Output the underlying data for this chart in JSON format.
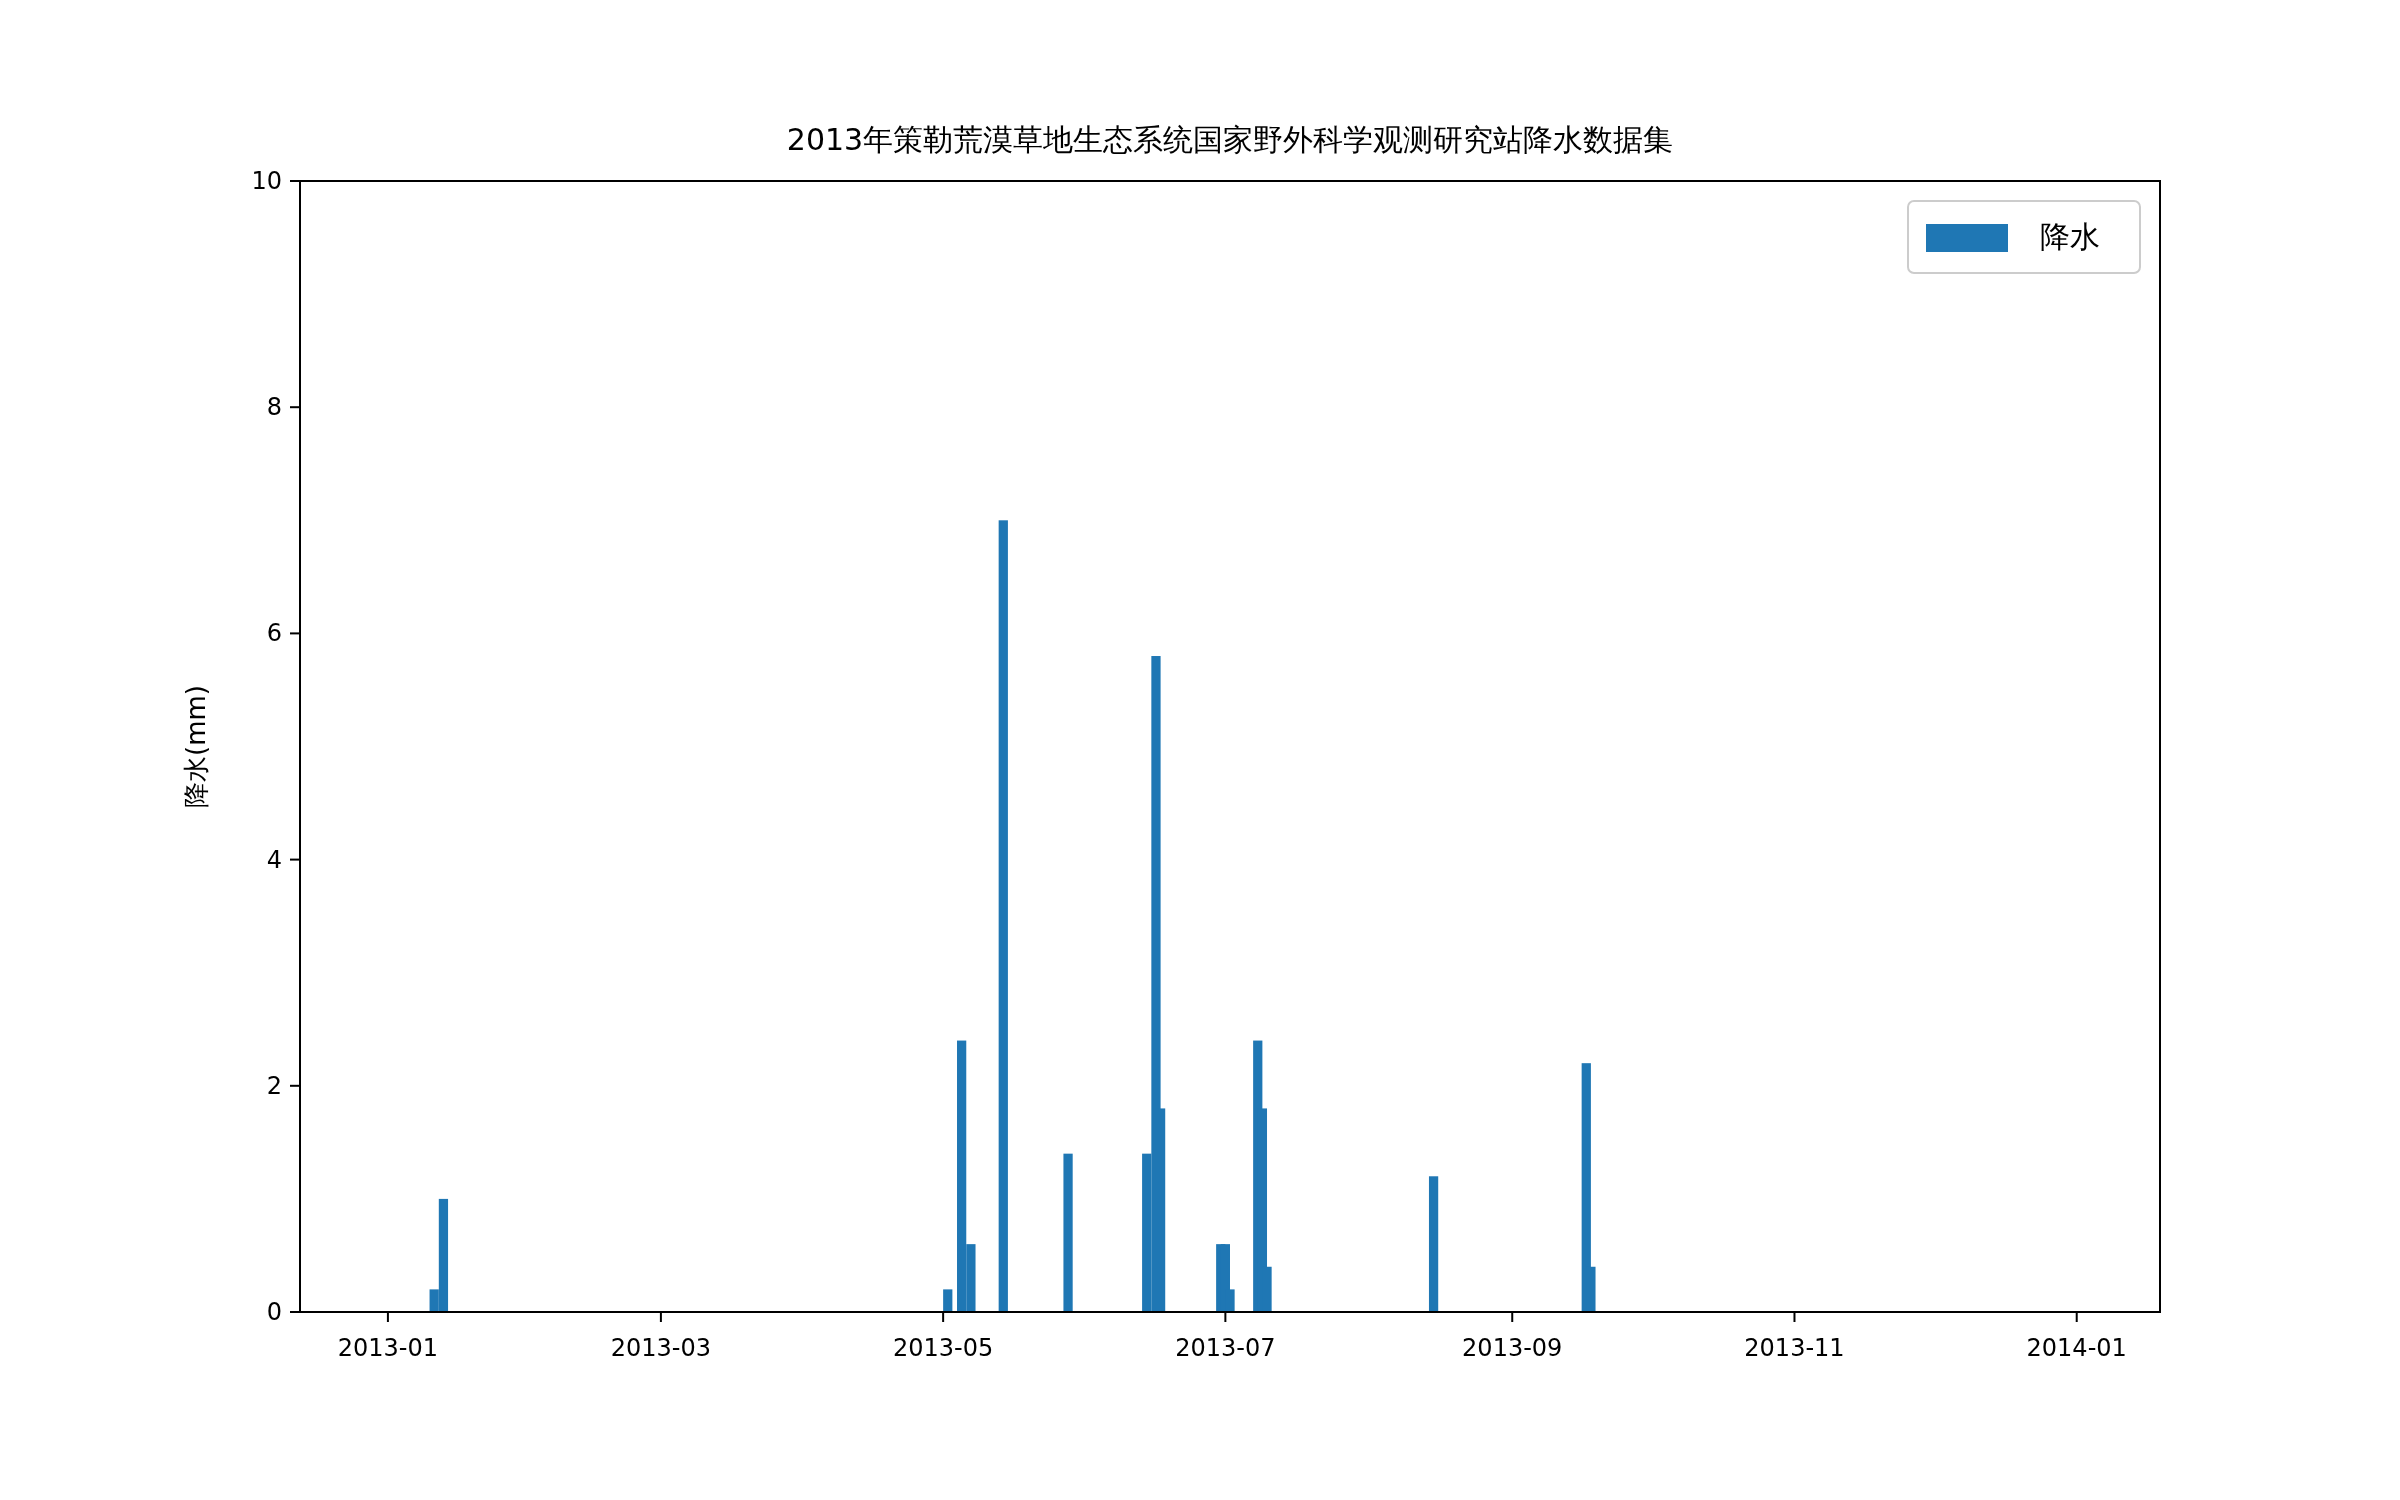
{
  "chart_data": {
    "type": "bar",
    "title": "2013年策勒荒漠草地生态系统国家野外科学观测研究站降水数据集",
    "ylabel": "降水(mm)",
    "x": [
      "2013-01-11",
      "2013-01-13",
      "2013-05-02",
      "2013-05-05",
      "2013-05-07",
      "2013-05-14",
      "2013-05-28",
      "2013-06-14",
      "2013-06-16",
      "2013-06-17",
      "2013-06-30",
      "2013-07-01",
      "2013-07-02",
      "2013-07-08",
      "2013-07-09",
      "2013-07-10",
      "2013-08-15",
      "2013-09-17",
      "2013-09-18"
    ],
    "series": [
      {
        "name": "降水",
        "color": "#1f77b4",
        "values": [
          0.2,
          1.0,
          0.2,
          2.4,
          0.6,
          7.0,
          1.4,
          1.4,
          5.8,
          1.8,
          0.6,
          0.6,
          0.2,
          2.4,
          1.8,
          0.4,
          1.2,
          2.2,
          0.4
        ]
      }
    ],
    "xlim": [
      "2012-12-13",
      "2014-01-19"
    ],
    "xticks": [
      "2013-01",
      "2013-03",
      "2013-05",
      "2013-07",
      "2013-09",
      "2013-11",
      "2014-01"
    ],
    "ylim": [
      0,
      10
    ],
    "yticks": [
      0,
      2,
      4,
      6,
      8,
      10
    ],
    "grid": false,
    "legend": "top right"
  }
}
